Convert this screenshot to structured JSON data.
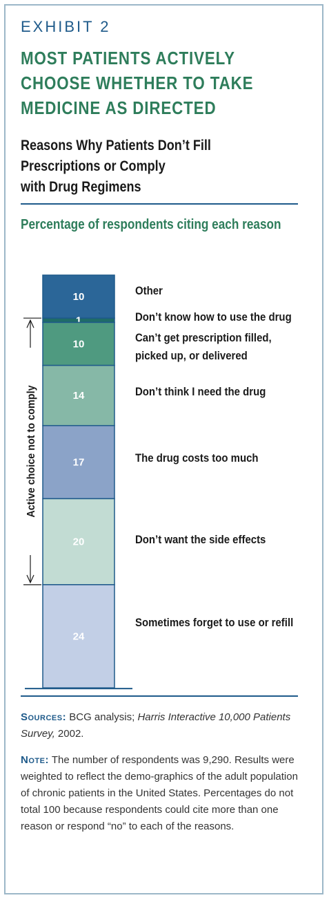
{
  "exhibit": "EXHIBIT 2",
  "headline": [
    "MOST PATIENTS ACTIVELY",
    "CHOOSE WHETHER TO TAKE",
    "MEDICINE AS DIRECTED"
  ],
  "subtitle": [
    "Reasons Why Patients Don’t Fill",
    "Prescriptions or Comply",
    "with Drug Regimens"
  ],
  "measure": "Percentage of respondents citing each reason",
  "chart_data": {
    "type": "bar",
    "stacked": true,
    "segments": [
      {
        "label": "Other",
        "value": 10,
        "color": "#2b6698"
      },
      {
        "label": "Don’t know how to use the drug",
        "value": 1,
        "color": "#1f6c68"
      },
      {
        "label": "Can’t get prescription filled,\npicked up, or delivered",
        "value": 10,
        "color": "#4f9a80"
      },
      {
        "label": "Don’t think I need the drug",
        "value": 14,
        "color": "#86b8a7"
      },
      {
        "label": "The drug costs too much",
        "value": 17,
        "color": "#8ba3c8"
      },
      {
        "label": "Don’t want the side effects",
        "value": 20,
        "color": "#c2dcd3"
      },
      {
        "label": "Sometimes forget to use or refill",
        "value": 24,
        "color": "#c2cfe6"
      }
    ],
    "bracket_label": "Active choice not to comply"
  },
  "sources": {
    "label": "Sources:",
    "text_before": " BCG analysis; ",
    "italic": "Harris Interactive 10,000 Patients Survey,",
    "text_after": " 2002."
  },
  "note": {
    "label": "Note:",
    "text": " The number of respondents was 9,290. Results were weighted to reflect the demo-graphics of the adult population of chronic patients in the United States. Percentages do not total 100 because respondents could cite more than one reason or respond “no” to each of the reasons."
  }
}
